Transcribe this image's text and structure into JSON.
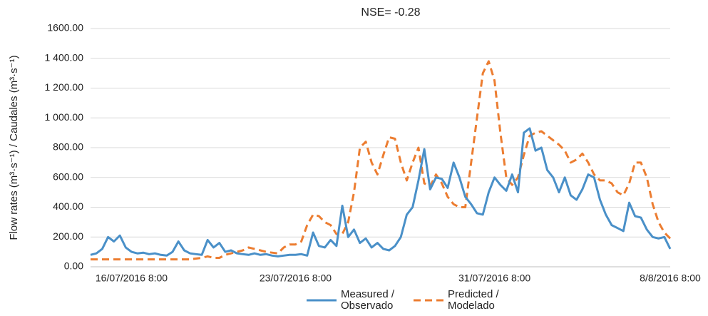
{
  "chart_data": {
    "type": "line",
    "title": "NSE= -0.28",
    "y_label": "Flow rates (m³·s⁻¹) / Caudales (m³·s⁻¹)",
    "categories": [
      null,
      null,
      null,
      null,
      null,
      null,
      null,
      "16/07/2016 8:00",
      null,
      null,
      null,
      null,
      null,
      null,
      null,
      null,
      null,
      null,
      null,
      null,
      null,
      null,
      null,
      null,
      null,
      null,
      null,
      null,
      null,
      null,
      null,
      null,
      null,
      null,
      null,
      "23/07/2016 8:00",
      null,
      null,
      null,
      null,
      null,
      null,
      null,
      null,
      null,
      null,
      null,
      null,
      null,
      null,
      null,
      null,
      null,
      null,
      null,
      null,
      null,
      null,
      null,
      null,
      null,
      null,
      null,
      null,
      null,
      null,
      null,
      null,
      null,
      "31/07/2016 8:00",
      null,
      null,
      null,
      null,
      null,
      null,
      null,
      null,
      null,
      null,
      null,
      null,
      null,
      null,
      null,
      null,
      null,
      null,
      null,
      null,
      null,
      null,
      null,
      null,
      null,
      null,
      null,
      null,
      null,
      "8/8/2016 8:00"
    ],
    "series": [
      {
        "name": "Measured / Observado",
        "color": "#4a90c8",
        "dash": false,
        "values": [
          80,
          90,
          120,
          200,
          170,
          210,
          130,
          100,
          90,
          95,
          85,
          90,
          80,
          75,
          100,
          170,
          110,
          90,
          85,
          80,
          180,
          130,
          160,
          100,
          110,
          90,
          85,
          80,
          90,
          80,
          85,
          75,
          70,
          75,
          80,
          80,
          85,
          75,
          230,
          140,
          130,
          180,
          140,
          410,
          200,
          250,
          160,
          190,
          130,
          160,
          120,
          110,
          140,
          200,
          350,
          400,
          580,
          790,
          520,
          600,
          590,
          530,
          700,
          600,
          470,
          420,
          360,
          350,
          500,
          600,
          550,
          510,
          620,
          500,
          900,
          930,
          780,
          800,
          650,
          600,
          500,
          600,
          480,
          450,
          520,
          620,
          600,
          450,
          350,
          280,
          260,
          240,
          430,
          340,
          330,
          250,
          200,
          190,
          200,
          120
        ]
      },
      {
        "name": "Predicted / Modelado",
        "color": "#ec7d31",
        "dash": true,
        "values": [
          50,
          50,
          50,
          50,
          50,
          50,
          50,
          50,
          50,
          50,
          50,
          50,
          50,
          50,
          50,
          50,
          50,
          50,
          55,
          60,
          70,
          60,
          60,
          80,
          90,
          100,
          110,
          130,
          120,
          110,
          100,
          95,
          90,
          130,
          150,
          150,
          170,
          280,
          350,
          340,
          300,
          280,
          220,
          220,
          300,
          500,
          800,
          840,
          700,
          620,
          750,
          870,
          860,
          700,
          580,
          700,
          800,
          560,
          540,
          620,
          560,
          470,
          420,
          400,
          400,
          700,
          1000,
          1300,
          1380,
          1250,
          900,
          600,
          550,
          600,
          750,
          880,
          900,
          910,
          880,
          850,
          820,
          780,
          700,
          720,
          760,
          700,
          620,
          580,
          580,
          560,
          500,
          480,
          560,
          700,
          700,
          600,
          420,
          300,
          230,
          190
        ]
      }
    ],
    "ylim": [
      0,
      1600
    ],
    "yticks": [
      {
        "value": 0,
        "label": "0.00"
      },
      {
        "value": 200,
        "label": "200.00"
      },
      {
        "value": 400,
        "label": "400.00"
      },
      {
        "value": 600,
        "label": "600.00"
      },
      {
        "value": 800,
        "label": "800.00"
      },
      {
        "value": 1000,
        "label": "1 000.00"
      },
      {
        "value": 1200,
        "label": "1 200.00"
      },
      {
        "value": 1400,
        "label": "1 400.00"
      },
      {
        "value": 1600,
        "label": "1600.00"
      }
    ],
    "grid": true
  }
}
